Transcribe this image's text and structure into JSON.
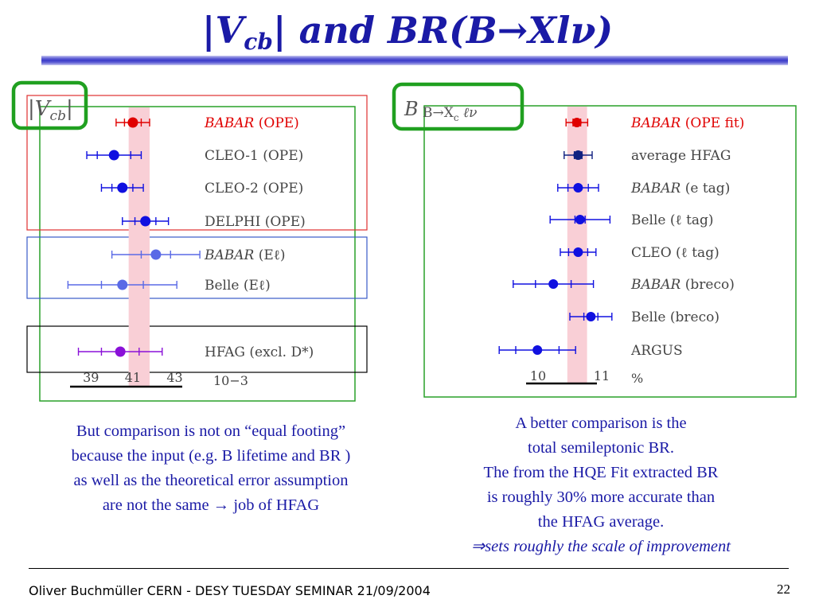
{
  "slide": {
    "title": {
      "pre": "|V",
      "sub": "cb",
      "post": "| and BR(B→Xlν)"
    },
    "left_caption": [
      "But comparison is not on “equal footing”",
      "because the input (e.g. B lifetime and BR )",
      "as well as the theoretical error assumption",
      "are not the same → job of HFAG"
    ],
    "right_caption": [
      "A better comparison is the",
      "total semileptonic BR.",
      "The from the HQE Fit extracted BR",
      "is roughly 30% more accurate than",
      "the HFAG average.",
      "⇒sets roughly the scale of improvement"
    ],
    "footer": "Oliver Buchmüller CERN - DESY TUESDAY SEMINAR 21/09/2004",
    "page_number": "22"
  },
  "colors": {
    "title": "#1a1aa6",
    "red": "#e00000",
    "blue": "#1010e0",
    "lightblue": "#5a6ae6",
    "purple": "#8a10d8",
    "navy": "#102080",
    "band": "#f9cfd6",
    "green_frame": "#20a020"
  },
  "chart_data": [
    {
      "type": "scatter",
      "title": "|Vcb|",
      "xlabel": "",
      "xunit": "10−3",
      "xlim": [
        38.0,
        44.5
      ],
      "xticks": [
        39,
        41,
        43
      ],
      "band": [
        40.8,
        41.8
      ],
      "series": [
        {
          "name": "BABAR (OPE)",
          "label_it": "BABAR",
          "label_rest": " (OPE)",
          "value": 41.0,
          "stat": 0.4,
          "tot": 0.8,
          "color": "red",
          "group": 0
        },
        {
          "name": "CLEO-1 (OPE)",
          "label_it": "",
          "label_rest": "CLEO-1 (OPE)",
          "value": 40.1,
          "stat": 0.8,
          "tot": 1.3,
          "color": "blue",
          "group": 0
        },
        {
          "name": "CLEO-2 (OPE)",
          "label_it": "",
          "label_rest": "CLEO-2 (OPE)",
          "value": 40.5,
          "stat": 0.5,
          "tot": 1.0,
          "color": "blue",
          "group": 0
        },
        {
          "name": "DELPHI (OPE)",
          "label_it": "",
          "label_rest": "DELPHI (OPE)",
          "value": 41.6,
          "stat": 0.5,
          "tot": 1.1,
          "color": "blue",
          "group": 0
        },
        {
          "name": "BABAR (Eℓ)",
          "label_it": "BABAR",
          "label_rest": " (Eℓ)",
          "value": 42.1,
          "stat": 0.7,
          "tot": 2.1,
          "color": "lightblue",
          "group": 1
        },
        {
          "name": "Belle (Eℓ)",
          "label_it": "",
          "label_rest": "Belle (Eℓ)",
          "value": 40.5,
          "stat": 1.0,
          "tot": 2.6,
          "color": "lightblue",
          "group": 1
        },
        {
          "name": "HFAG (excl. D*)",
          "label_it": "",
          "label_rest": "HFAG (excl. D*)",
          "value": 40.4,
          "stat": 0.9,
          "tot": 2.0,
          "color": "purple",
          "group": 2
        }
      ]
    },
    {
      "type": "scatter",
      "title": "B B→Xcℓν",
      "xlabel": "",
      "xunit": "%",
      "xlim": [
        9.55,
        11.55
      ],
      "xticks": [
        10,
        11
      ],
      "band": [
        10.46,
        10.77
      ],
      "series": [
        {
          "name": "BABAR (OPE fit)",
          "label_it": "BABAR",
          "label_rest": " (OPE fit)",
          "value": 10.61,
          "stat": 0.06,
          "tot": 0.17,
          "color": "red"
        },
        {
          "name": "average HFAG",
          "label_it": "",
          "label_rest": "average HFAG",
          "value": 10.63,
          "stat": 0.06,
          "tot": 0.22,
          "color": "navy"
        },
        {
          "name": "BABAR (e tag)",
          "label_it": "BABAR",
          "label_rest": " (e tag)",
          "value": 10.63,
          "stat": 0.16,
          "tot": 0.32,
          "color": "blue"
        },
        {
          "name": "Belle (ℓ tag)",
          "label_it": "",
          "label_rest": "Belle (ℓ tag)",
          "value": 10.66,
          "stat": 0.08,
          "tot": 0.47,
          "color": "blue"
        },
        {
          "name": "CLEO (ℓ tag)",
          "label_it": "",
          "label_rest": "CLEO (ℓ tag)",
          "value": 10.63,
          "stat": 0.15,
          "tot": 0.28,
          "color": "blue"
        },
        {
          "name": "BABAR (breco)",
          "label_it": "BABAR",
          "label_rest": " (breco)",
          "value": 10.24,
          "stat": 0.28,
          "tot": 0.63,
          "color": "blue"
        },
        {
          "name": "Belle (breco)",
          "label_it": "",
          "label_rest": "Belle (breco)",
          "value": 10.83,
          "stat": 0.11,
          "tot": 0.33,
          "color": "blue"
        },
        {
          "name": "ARGUS",
          "label_it": "",
          "label_rest": "ARGUS",
          "value": 9.99,
          "stat": 0.34,
          "tot": 0.6,
          "color": "blue"
        }
      ]
    }
  ]
}
